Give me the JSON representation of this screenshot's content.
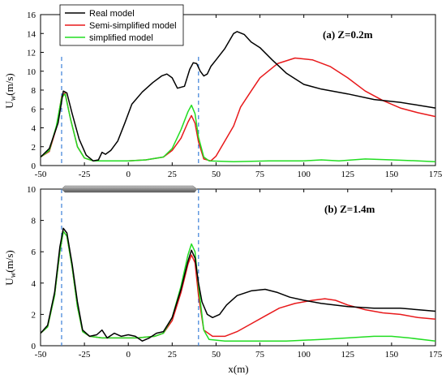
{
  "colors": {
    "real": "#000000",
    "semi": "#e8191b",
    "simplified": "#22dd22",
    "marker": "#3a7fd8"
  },
  "legend": [
    {
      "key": "real",
      "label": "Real model"
    },
    {
      "key": "semi",
      "label": "Semi-simplified model"
    },
    {
      "key": "simplified",
      "label": "simplified model"
    }
  ],
  "xlabel": "x(m)",
  "chart_data": [
    {
      "type": "line",
      "panel_label": "(a) Z=0.2m",
      "ylabel": "U_w(m/s)",
      "xlim": [
        -50,
        175
      ],
      "ylim": [
        0,
        16
      ],
      "x_ticks": [
        -50,
        -25,
        0,
        25,
        50,
        75,
        100,
        125,
        150,
        175
      ],
      "y_ticks": [
        0,
        2,
        4,
        6,
        8,
        10,
        12,
        14,
        16
      ],
      "vlines": [
        -38,
        40
      ],
      "series": [
        {
          "name": "Real model",
          "key": "real",
          "points": [
            [
              -50,
              0.9
            ],
            [
              -45,
              1.8
            ],
            [
              -40,
              4.5
            ],
            [
              -37,
              7.9
            ],
            [
              -35,
              7.7
            ],
            [
              -32,
              5.5
            ],
            [
              -28,
              2.8
            ],
            [
              -24,
              1.1
            ],
            [
              -20,
              0.5
            ],
            [
              -17,
              0.6
            ],
            [
              -15,
              1.4
            ],
            [
              -13,
              1.2
            ],
            [
              -10,
              1.6
            ],
            [
              -6,
              2.6
            ],
            [
              -2,
              4.5
            ],
            [
              2,
              6.5
            ],
            [
              8,
              7.8
            ],
            [
              14,
              8.8
            ],
            [
              19,
              9.5
            ],
            [
              22,
              9.7
            ],
            [
              25,
              9.3
            ],
            [
              28,
              8.2
            ],
            [
              32,
              8.4
            ],
            [
              35,
              10.2
            ],
            [
              37,
              10.9
            ],
            [
              39,
              10.8
            ],
            [
              41,
              10.0
            ],
            [
              43,
              9.5
            ],
            [
              45,
              9.7
            ],
            [
              47,
              10.5
            ],
            [
              50,
              11.2
            ],
            [
              55,
              12.4
            ],
            [
              60,
              14.0
            ],
            [
              62,
              14.2
            ],
            [
              66,
              13.9
            ],
            [
              70,
              13.1
            ],
            [
              75,
              12.5
            ],
            [
              82,
              11.2
            ],
            [
              90,
              9.8
            ],
            [
              100,
              8.6
            ],
            [
              110,
              8.1
            ],
            [
              125,
              7.6
            ],
            [
              140,
              7.0
            ],
            [
              155,
              6.7
            ],
            [
              175,
              6.1
            ]
          ]
        },
        {
          "name": "Semi-simplified model",
          "key": "semi",
          "points": [
            [
              -50,
              0.9
            ],
            [
              -45,
              1.5
            ],
            [
              -41,
              4.0
            ],
            [
              -38,
              7.3
            ],
            [
              -36,
              7.7
            ],
            [
              -33,
              5.0
            ],
            [
              -29,
              2.0
            ],
            [
              -25,
              0.8
            ],
            [
              -20,
              0.5
            ],
            [
              -10,
              0.5
            ],
            [
              0,
              0.5
            ],
            [
              10,
              0.6
            ],
            [
              20,
              0.9
            ],
            [
              25,
              1.6
            ],
            [
              30,
              2.9
            ],
            [
              34,
              4.6
            ],
            [
              36,
              5.3
            ],
            [
              38,
              4.5
            ],
            [
              40,
              2.5
            ],
            [
              43,
              0.7
            ],
            [
              47,
              0.5
            ],
            [
              50,
              1.0
            ],
            [
              55,
              2.6
            ],
            [
              60,
              4.2
            ],
            [
              64,
              6.2
            ],
            [
              70,
              7.9
            ],
            [
              75,
              9.3
            ],
            [
              85,
              10.8
            ],
            [
              95,
              11.4
            ],
            [
              105,
              11.2
            ],
            [
              115,
              10.5
            ],
            [
              125,
              9.3
            ],
            [
              135,
              7.9
            ],
            [
              145,
              6.9
            ],
            [
              155,
              6.1
            ],
            [
              165,
              5.6
            ],
            [
              175,
              5.2
            ]
          ]
        },
        {
          "name": "simplified model",
          "key": "simplified",
          "points": [
            [
              -50,
              0.9
            ],
            [
              -45,
              1.6
            ],
            [
              -41,
              4.2
            ],
            [
              -38,
              7.2
            ],
            [
              -36,
              7.6
            ],
            [
              -33,
              5.0
            ],
            [
              -29,
              2.0
            ],
            [
              -25,
              0.8
            ],
            [
              -20,
              0.5
            ],
            [
              -10,
              0.5
            ],
            [
              0,
              0.5
            ],
            [
              10,
              0.6
            ],
            [
              20,
              0.9
            ],
            [
              25,
              1.8
            ],
            [
              30,
              3.8
            ],
            [
              34,
              5.7
            ],
            [
              36,
              6.4
            ],
            [
              38,
              5.5
            ],
            [
              40,
              3.0
            ],
            [
              43,
              0.9
            ],
            [
              46,
              0.5
            ],
            [
              60,
              0.4
            ],
            [
              80,
              0.5
            ],
            [
              100,
              0.5
            ],
            [
              110,
              0.6
            ],
            [
              120,
              0.5
            ],
            [
              135,
              0.7
            ],
            [
              150,
              0.6
            ],
            [
              165,
              0.5
            ],
            [
              175,
              0.4
            ]
          ]
        }
      ]
    },
    {
      "type": "line",
      "panel_label": "(b) Z=1.4m",
      "ylabel": "U_w(m/s)",
      "xlim": [
        -50,
        175
      ],
      "ylim": [
        0,
        10
      ],
      "x_ticks": [
        -50,
        -25,
        0,
        25,
        50,
        75,
        100,
        125,
        150,
        175
      ],
      "y_ticks": [
        0,
        2,
        4,
        6,
        8,
        10
      ],
      "vlines": [
        -38,
        40
      ],
      "series": [
        {
          "name": "Real model",
          "key": "real",
          "points": [
            [
              -50,
              0.8
            ],
            [
              -46,
              1.3
            ],
            [
              -42,
              3.4
            ],
            [
              -39,
              6.3
            ],
            [
              -37,
              7.5
            ],
            [
              -35,
              7.2
            ],
            [
              -32,
              5.2
            ],
            [
              -29,
              2.8
            ],
            [
              -26,
              1.0
            ],
            [
              -22,
              0.6
            ],
            [
              -18,
              0.7
            ],
            [
              -15,
              1.0
            ],
            [
              -12,
              0.5
            ],
            [
              -8,
              0.8
            ],
            [
              -4,
              0.6
            ],
            [
              0,
              0.7
            ],
            [
              4,
              0.6
            ],
            [
              8,
              0.3
            ],
            [
              12,
              0.5
            ],
            [
              16,
              0.8
            ],
            [
              20,
              0.9
            ],
            [
              25,
              1.8
            ],
            [
              30,
              3.6
            ],
            [
              34,
              5.4
            ],
            [
              36,
              6.1
            ],
            [
              38,
              5.6
            ],
            [
              40,
              4.0
            ],
            [
              42,
              2.8
            ],
            [
              45,
              2.0
            ],
            [
              48,
              1.8
            ],
            [
              52,
              2.0
            ],
            [
              56,
              2.6
            ],
            [
              62,
              3.2
            ],
            [
              70,
              3.5
            ],
            [
              78,
              3.6
            ],
            [
              85,
              3.4
            ],
            [
              92,
              3.1
            ],
            [
              100,
              2.9
            ],
            [
              110,
              2.7
            ],
            [
              125,
              2.5
            ],
            [
              140,
              2.4
            ],
            [
              155,
              2.4
            ],
            [
              165,
              2.3
            ],
            [
              175,
              2.2
            ]
          ]
        },
        {
          "name": "Semi-simplified model",
          "key": "semi",
          "points": [
            [
              -50,
              0.8
            ],
            [
              -46,
              1.2
            ],
            [
              -42,
              3.2
            ],
            [
              -39,
              6.0
            ],
            [
              -37,
              7.3
            ],
            [
              -35,
              7.0
            ],
            [
              -32,
              5.0
            ],
            [
              -29,
              2.5
            ],
            [
              -26,
              0.9
            ],
            [
              -22,
              0.6
            ],
            [
              -15,
              0.5
            ],
            [
              -5,
              0.5
            ],
            [
              5,
              0.5
            ],
            [
              15,
              0.6
            ],
            [
              20,
              0.8
            ],
            [
              25,
              1.6
            ],
            [
              30,
              3.4
            ],
            [
              34,
              5.2
            ],
            [
              36,
              5.8
            ],
            [
              38,
              5.3
            ],
            [
              40,
              3.2
            ],
            [
              43,
              1.0
            ],
            [
              48,
              0.6
            ],
            [
              55,
              0.6
            ],
            [
              62,
              0.9
            ],
            [
              70,
              1.4
            ],
            [
              78,
              1.9
            ],
            [
              86,
              2.4
            ],
            [
              95,
              2.7
            ],
            [
              105,
              2.9
            ],
            [
              112,
              3.0
            ],
            [
              118,
              2.9
            ],
            [
              125,
              2.6
            ],
            [
              135,
              2.3
            ],
            [
              145,
              2.1
            ],
            [
              155,
              2.0
            ],
            [
              165,
              1.8
            ],
            [
              175,
              1.7
            ]
          ]
        },
        {
          "name": "simplified model",
          "key": "simplified",
          "points": [
            [
              -50,
              0.8
            ],
            [
              -46,
              1.2
            ],
            [
              -42,
              3.2
            ],
            [
              -39,
              6.0
            ],
            [
              -37,
              7.3
            ],
            [
              -35,
              7.0
            ],
            [
              -32,
              5.0
            ],
            [
              -29,
              2.5
            ],
            [
              -26,
              0.9
            ],
            [
              -22,
              0.6
            ],
            [
              -15,
              0.5
            ],
            [
              -5,
              0.5
            ],
            [
              5,
              0.5
            ],
            [
              15,
              0.6
            ],
            [
              20,
              0.8
            ],
            [
              25,
              1.8
            ],
            [
              30,
              3.8
            ],
            [
              34,
              5.8
            ],
            [
              36,
              6.5
            ],
            [
              38,
              6.0
            ],
            [
              40,
              3.8
            ],
            [
              43,
              1.0
            ],
            [
              46,
              0.4
            ],
            [
              55,
              0.3
            ],
            [
              70,
              0.3
            ],
            [
              90,
              0.3
            ],
            [
              110,
              0.4
            ],
            [
              125,
              0.5
            ],
            [
              140,
              0.6
            ],
            [
              150,
              0.6
            ],
            [
              160,
              0.5
            ],
            [
              175,
              0.3
            ]
          ]
        }
      ]
    }
  ]
}
